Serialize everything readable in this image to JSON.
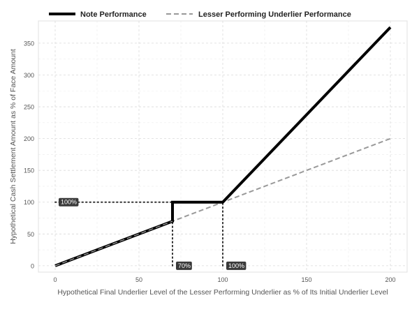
{
  "chart_data": {
    "type": "line",
    "title": "",
    "xlabel": "Hypothetical Final Underlier Level of the Lesser Performing Underlier as % of Its Initial Underlier Level",
    "ylabel": "Hypothetical Cash Settlement Amount as % of Face Amount",
    "xlim": [
      -10,
      210
    ],
    "ylim": [
      -10,
      385
    ],
    "x_ticks": [
      0,
      50,
      100,
      150,
      200
    ],
    "y_ticks": [
      0,
      50,
      100,
      150,
      200,
      250,
      300,
      350
    ],
    "grid": true,
    "legend_position": "top",
    "series": [
      {
        "name": "Note Performance",
        "style": "solid",
        "color": "#000000",
        "points": [
          [
            0,
            0
          ],
          [
            70,
            70
          ],
          [
            70,
            100
          ],
          [
            100,
            100
          ],
          [
            200,
            375
          ]
        ]
      },
      {
        "name": "Lesser Performing Underlier Performance",
        "style": "dashed",
        "color": "#999999",
        "points": [
          [
            0,
            0
          ],
          [
            200,
            200
          ]
        ]
      }
    ],
    "reference_lines": [
      {
        "points": [
          [
            0,
            100
          ],
          [
            100,
            100
          ]
        ]
      },
      {
        "points": [
          [
            70,
            0
          ],
          [
            70,
            100
          ]
        ]
      },
      {
        "points": [
          [
            100,
            0
          ],
          [
            100,
            100
          ]
        ]
      }
    ],
    "annotations": [
      {
        "text": "100%",
        "x": 0,
        "y": 100
      },
      {
        "text": "70%",
        "x": 70,
        "y": 0
      },
      {
        "text": "100%",
        "x": 100,
        "y": 0
      }
    ]
  }
}
